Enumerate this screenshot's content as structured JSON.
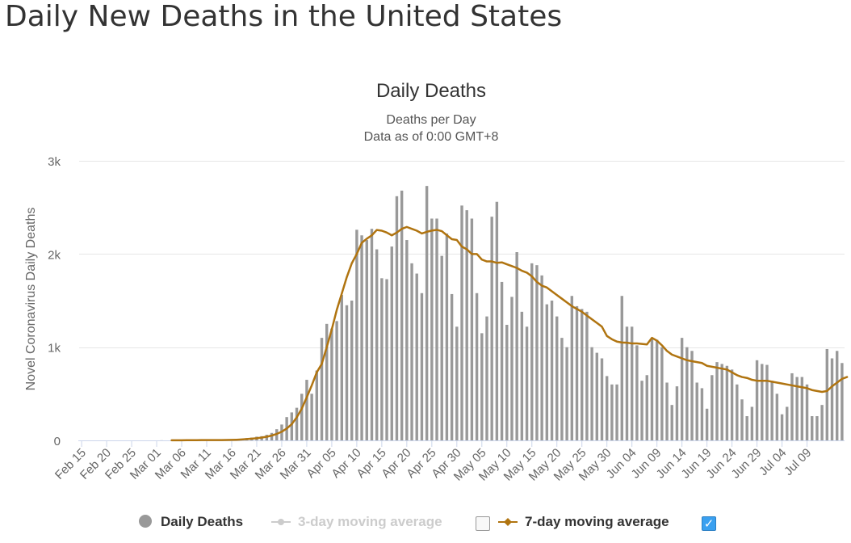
{
  "page": {
    "heading": "Daily New Deaths in the United States"
  },
  "chart_data": {
    "type": "bar",
    "title": "Daily Deaths",
    "subtitle_line1": "Deaths per Day",
    "subtitle_line2": "Data as of 0:00 GMT+8",
    "ylabel": "Novel Coronavirus Daily Deaths",
    "xlabel": "",
    "ylim": [
      0,
      3000
    ],
    "yticks": [
      0,
      1000,
      2000,
      3000
    ],
    "ytick_labels": [
      "0",
      "1k",
      "2k",
      "3k"
    ],
    "grid": true,
    "start_date": "2020-02-15",
    "xtick_labels": [
      "Feb 15",
      "Feb 20",
      "Feb 25",
      "Mar 01",
      "Mar 06",
      "Mar 11",
      "Mar 16",
      "Mar 21",
      "Mar 26",
      "Mar 31",
      "Apr 05",
      "Apr 10",
      "Apr 15",
      "Apr 20",
      "Apr 25",
      "Apr 30",
      "May 05",
      "May 10",
      "May 15",
      "May 20",
      "May 25",
      "May 30",
      "Jun 04",
      "Jun 09",
      "Jun 14",
      "Jun 19",
      "Jun 24",
      "Jun 29",
      "Jul 04",
      "Jul 09"
    ],
    "series": [
      {
        "name": "Daily Deaths",
        "kind": "bar",
        "color": "#999999",
        "values": [
          0,
          0,
          0,
          0,
          0,
          0,
          0,
          0,
          0,
          0,
          0,
          0,
          0,
          0,
          0,
          0,
          1,
          0,
          1,
          0,
          2,
          5,
          1,
          2,
          3,
          4,
          1,
          3,
          4,
          4,
          8,
          12,
          18,
          24,
          30,
          40,
          45,
          60,
          80,
          120,
          170,
          250,
          300,
          350,
          500,
          650,
          500,
          750,
          1100,
          1250,
          1200,
          1280,
          1560,
          1450,
          1500,
          2260,
          2200,
          2150,
          2270,
          2050,
          1740,
          1730,
          2080,
          2620,
          2680,
          2150,
          1900,
          1790,
          1580,
          2730,
          2380,
          2380,
          1980,
          2220,
          1570,
          1220,
          2520,
          2470,
          2380,
          1580,
          1150,
          1330,
          2400,
          2560,
          1700,
          1240,
          1540,
          2020,
          1380,
          1220,
          1900,
          1880,
          1770,
          1460,
          1500,
          1330,
          1100,
          1000,
          1550,
          1440,
          1410,
          1380,
          1000,
          940,
          880,
          690,
          600,
          600,
          1550,
          1220,
          1220,
          1020,
          640,
          700,
          1100,
          1080,
          1000,
          620,
          380,
          580,
          1100,
          1000,
          960,
          620,
          560,
          340,
          700,
          840,
          820,
          800,
          760,
          600,
          440,
          260,
          360,
          860,
          820,
          810,
          640,
          500,
          280,
          360,
          720,
          680,
          680,
          600,
          260,
          260,
          380,
          980,
          880,
          960,
          830
        ],
        "visible": true
      },
      {
        "name": "3-day moving average",
        "kind": "line",
        "color": "#cccccc",
        "visible": false
      },
      {
        "name": "7-day moving average",
        "kind": "line",
        "color": "#b07410",
        "visible": true,
        "values": [
          0,
          0,
          0,
          0,
          0,
          0,
          0,
          0,
          0,
          0,
          0,
          0,
          0,
          0,
          0,
          0,
          0,
          0,
          1,
          1,
          1,
          2,
          2,
          2,
          3,
          3,
          3,
          3,
          3,
          4,
          5,
          7,
          10,
          14,
          18,
          23,
          30,
          39,
          52,
          69,
          93,
          127,
          174,
          247,
          340,
          462,
          590,
          730,
          820,
          1001,
          1190,
          1400,
          1575,
          1751,
          1900,
          2000,
          2120,
          2164,
          2200,
          2258,
          2250,
          2230,
          2200,
          2230,
          2270,
          2290,
          2270,
          2250,
          2220,
          2238,
          2251,
          2259,
          2245,
          2201,
          2159,
          2150,
          2080,
          2050,
          2000,
          2000,
          1940,
          1920,
          1920,
          1905,
          1910,
          1890,
          1870,
          1850,
          1820,
          1800,
          1760,
          1700,
          1660,
          1640,
          1600,
          1560,
          1520,
          1480,
          1440,
          1410,
          1380,
          1340,
          1300,
          1260,
          1220,
          1120,
          1085,
          1060,
          1050,
          1048,
          1040,
          1040,
          1035,
          1030,
          1100,
          1070,
          1020,
          960,
          920,
          900,
          880,
          860,
          850,
          840,
          830,
          800,
          790,
          780,
          770,
          760,
          730,
          700,
          680,
          670,
          650,
          640,
          640,
          640,
          630,
          620,
          610,
          600,
          590,
          580,
          570,
          560,
          540,
          530,
          520,
          530,
          580,
          620,
          660,
          680
        ]
      }
    ],
    "legend": {
      "position": "bottom",
      "items": [
        {
          "label": "Daily Deaths",
          "color": "#999999",
          "marker": "circle",
          "active": true
        },
        {
          "label": "3-day moving average",
          "color": "#cccccc",
          "marker": "line-dot",
          "active": false,
          "checked": false
        },
        {
          "label": "7-day moving average",
          "color": "#b07410",
          "marker": "line-dot",
          "active": true,
          "checked": true
        }
      ]
    }
  }
}
